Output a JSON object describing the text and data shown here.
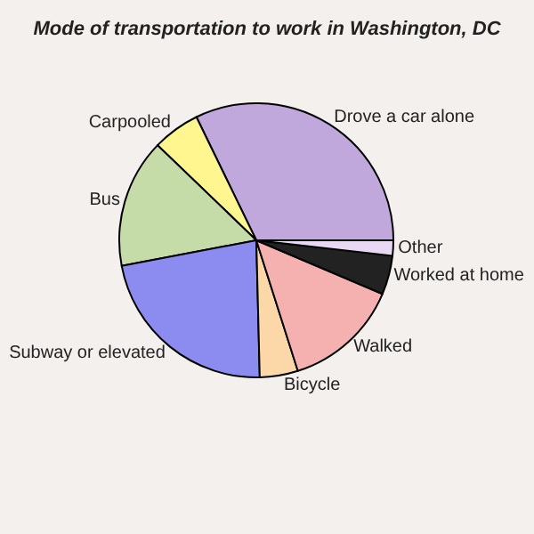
{
  "chart_data": {
    "type": "pie",
    "title": "Mode of transportation to work in Washington, DC",
    "categories": [
      "Drove a car alone",
      "Carpooled",
      "Bus",
      "Subway or elevated",
      "Bicycle",
      "Walked",
      "Worked at home",
      "Other"
    ],
    "values": [
      32.2,
      5.6,
      15.2,
      22.4,
      4.5,
      13.7,
      4.6,
      1.8
    ],
    "colors": [
      "#c0a8dc",
      "#fff68f",
      "#c6dca8",
      "#8c8cf0",
      "#fcd8a8",
      "#f5b0b0",
      "#222222",
      "#e8d8f4"
    ]
  }
}
